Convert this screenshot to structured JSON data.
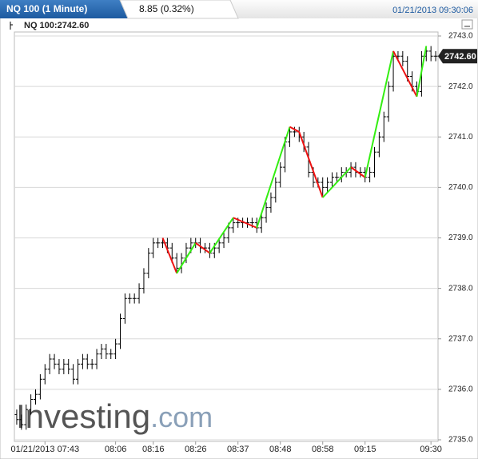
{
  "header": {
    "title": "NQ 100 (1 Minute)",
    "change": "8.85 (0.32%)",
    "timestamp": "01/21/2013 09:30:06"
  },
  "chart_data": {
    "type": "ohlc",
    "legend": "NQ 100:2742.60",
    "watermark": [
      "Investing",
      ".com"
    ],
    "categories": [
      null,
      null,
      null,
      null,
      null,
      null,
      "01/21/2013 07:43",
      null,
      null,
      null,
      null,
      null,
      null,
      null,
      null,
      null,
      null,
      null,
      null,
      null,
      null,
      "08:06",
      null,
      null,
      null,
      null,
      null,
      null,
      null,
      "08:16",
      null,
      null,
      null,
      null,
      null,
      null,
      null,
      null,
      "08:26",
      null,
      null,
      null,
      null,
      null,
      null,
      null,
      null,
      "08:37",
      null,
      null,
      null,
      null,
      null,
      null,
      null,
      null,
      "08:48",
      null,
      null,
      null,
      null,
      null,
      null,
      null,
      null,
      "08:58",
      null,
      null,
      null,
      null,
      null,
      null,
      null,
      null,
      "09:15",
      null,
      null,
      null,
      null,
      null,
      null,
      null,
      null,
      null,
      null,
      null,
      null,
      null,
      "09:30",
      null
    ],
    "series": [
      {
        "color": "#000000",
        "open": [
          2735.5,
          2735.4,
          2735.3,
          2735.6,
          2735.8,
          2735.9,
          2736.2,
          2736.4,
          2736.6,
          2736.5,
          2736.4,
          2736.5,
          2736.4,
          2736.2,
          2736.5,
          2736.6,
          2736.5,
          2736.5,
          2736.7,
          2736.8,
          2736.7,
          2736.7,
          2736.9,
          2737.4,
          2737.8,
          2737.8,
          2737.8,
          2738.0,
          2738.3,
          2738.7,
          2738.9,
          2738.9,
          2738.9,
          2738.8,
          2738.6,
          2738.4,
          2738.6,
          2738.8,
          2738.9,
          2738.9,
          2738.8,
          2738.8,
          2738.7,
          2738.8,
          2738.9,
          2739.0,
          2739.2,
          2739.3,
          2739.3,
          2739.3,
          2739.3,
          2739.3,
          2739.2,
          2739.4,
          2739.6,
          2739.8,
          2740.1,
          2740.4,
          2740.9,
          2741.1,
          2741.1,
          2741.0,
          2740.8,
          2740.3,
          2740.1,
          2740.1,
          2740.0,
          2740.1,
          2740.2,
          2740.2,
          2740.3,
          2740.3,
          2740.4,
          2740.3,
          2740.3,
          2740.2,
          2740.3,
          2740.7,
          2741.0,
          2741.4,
          2742.0,
          2742.6,
          2742.6,
          2742.5,
          2742.2,
          2742.0,
          2741.9,
          2742.6,
          2742.7,
          2742.6
        ],
        "high": [
          2735.6,
          2735.5,
          2735.7,
          2735.9,
          2736.0,
          2736.3,
          2736.5,
          2736.7,
          2736.7,
          2736.6,
          2736.6,
          2736.6,
          2736.5,
          2736.6,
          2736.7,
          2736.7,
          2736.6,
          2736.8,
          2736.9,
          2736.9,
          2736.8,
          2737.0,
          2737.5,
          2737.9,
          2737.9,
          2737.9,
          2738.1,
          2738.4,
          2738.8,
          2739.0,
          2739.0,
          2739.0,
          2739.0,
          2738.9,
          2738.7,
          2738.7,
          2738.9,
          2739.0,
          2739.0,
          2739.0,
          2738.9,
          2738.9,
          2738.9,
          2739.0,
          2739.1,
          2739.3,
          2739.4,
          2739.4,
          2739.4,
          2739.4,
          2739.4,
          2739.4,
          2739.5,
          2739.7,
          2739.9,
          2740.2,
          2740.5,
          2741.0,
          2741.2,
          2741.2,
          2741.2,
          2741.1,
          2740.9,
          2740.4,
          2740.2,
          2740.2,
          2740.2,
          2740.3,
          2740.3,
          2740.4,
          2740.4,
          2740.5,
          2740.5,
          2740.4,
          2740.4,
          2740.4,
          2740.8,
          2741.1,
          2741.5,
          2742.1,
          2742.7,
          2742.7,
          2742.7,
          2742.6,
          2742.3,
          2742.1,
          2742.7,
          2742.8,
          2742.8,
          2742.7
        ],
        "low": [
          2735.3,
          2735.2,
          2735.2,
          2735.5,
          2735.7,
          2735.8,
          2736.1,
          2736.3,
          2736.4,
          2736.3,
          2736.3,
          2736.3,
          2736.1,
          2736.1,
          2736.4,
          2736.4,
          2736.4,
          2736.4,
          2736.6,
          2736.6,
          2736.6,
          2736.6,
          2736.8,
          2737.3,
          2737.7,
          2737.7,
          2737.7,
          2737.9,
          2738.2,
          2738.6,
          2738.8,
          2738.8,
          2738.7,
          2738.5,
          2738.3,
          2738.3,
          2738.5,
          2738.7,
          2738.8,
          2738.7,
          2738.7,
          2738.6,
          2738.6,
          2738.7,
          2738.8,
          2738.9,
          2739.1,
          2739.2,
          2739.2,
          2739.2,
          2739.2,
          2739.1,
          2739.1,
          2739.3,
          2739.5,
          2739.7,
          2740.0,
          2740.3,
          2740.8,
          2741.0,
          2740.9,
          2740.7,
          2740.2,
          2740.0,
          2740.0,
          2739.8,
          2739.9,
          2740.0,
          2740.1,
          2740.1,
          2740.2,
          2740.2,
          2740.2,
          2740.2,
          2740.1,
          2740.1,
          2740.2,
          2740.6,
          2740.9,
          2741.3,
          2741.9,
          2742.5,
          2742.4,
          2742.1,
          2741.9,
          2741.8,
          2741.8,
          2742.5,
          2742.5,
          2742.5
        ],
        "close": [
          2735.4,
          2735.3,
          2735.6,
          2735.8,
          2735.9,
          2736.2,
          2736.4,
          2736.6,
          2736.5,
          2736.4,
          2736.5,
          2736.4,
          2736.2,
          2736.5,
          2736.6,
          2736.5,
          2736.5,
          2736.7,
          2736.8,
          2736.7,
          2736.7,
          2736.9,
          2737.4,
          2737.8,
          2737.8,
          2737.8,
          2738.0,
          2738.3,
          2738.7,
          2738.9,
          2738.9,
          2738.9,
          2738.8,
          2738.6,
          2738.4,
          2738.6,
          2738.8,
          2738.9,
          2738.9,
          2738.8,
          2738.8,
          2738.7,
          2738.8,
          2738.9,
          2739.0,
          2739.2,
          2739.3,
          2739.3,
          2739.3,
          2739.3,
          2739.3,
          2739.2,
          2739.4,
          2739.6,
          2739.8,
          2740.1,
          2740.4,
          2740.9,
          2741.1,
          2741.1,
          2741.0,
          2740.8,
          2740.3,
          2740.1,
          2740.1,
          2740.0,
          2740.1,
          2740.2,
          2740.2,
          2740.3,
          2740.3,
          2740.4,
          2740.3,
          2740.3,
          2740.2,
          2740.3,
          2740.7,
          2741.0,
          2741.4,
          2742.0,
          2742.6,
          2742.6,
          2742.5,
          2742.2,
          2742.0,
          2741.9,
          2742.6,
          2742.7,
          2742.6,
          2742.6
        ]
      }
    ],
    "zigzag": {
      "up_color": "#33ee11",
      "down_color": "#ee1111",
      "values": [
        null,
        null,
        null,
        null,
        null,
        null,
        null,
        null,
        null,
        null,
        null,
        null,
        null,
        null,
        null,
        null,
        null,
        null,
        null,
        null,
        null,
        null,
        null,
        null,
        null,
        null,
        null,
        null,
        null,
        null,
        null,
        2739.0,
        null,
        null,
        2738.3,
        null,
        null,
        null,
        2738.9,
        null,
        null,
        2738.7,
        null,
        null,
        null,
        null,
        2739.4,
        null,
        null,
        null,
        null,
        2739.2,
        null,
        null,
        null,
        null,
        null,
        null,
        2741.2,
        null,
        2741.1,
        null,
        null,
        null,
        null,
        2739.8,
        null,
        null,
        null,
        null,
        null,
        2740.4,
        null,
        null,
        2740.2,
        null,
        null,
        null,
        null,
        null,
        2742.7,
        null,
        null,
        null,
        null,
        2741.8,
        null,
        2742.8,
        null,
        null
      ]
    },
    "last": {
      "value": 2742.6,
      "label": "2742.60"
    },
    "ylim": [
      2735,
      2743
    ],
    "yticks": [
      {
        "value": 2735,
        "label": "2735.0"
      },
      {
        "value": 2736,
        "label": "2736.0"
      },
      {
        "value": 2737,
        "label": "2737.0"
      },
      {
        "value": 2738,
        "label": "2738.0"
      },
      {
        "value": 2739,
        "label": "2739.0"
      },
      {
        "value": 2740,
        "label": "2740.0"
      },
      {
        "value": 2741,
        "label": "2741.0"
      },
      {
        "value": 2742,
        "label": "2742.0"
      },
      {
        "value": 2743,
        "label": "2743.0"
      }
    ],
    "grid": true
  }
}
